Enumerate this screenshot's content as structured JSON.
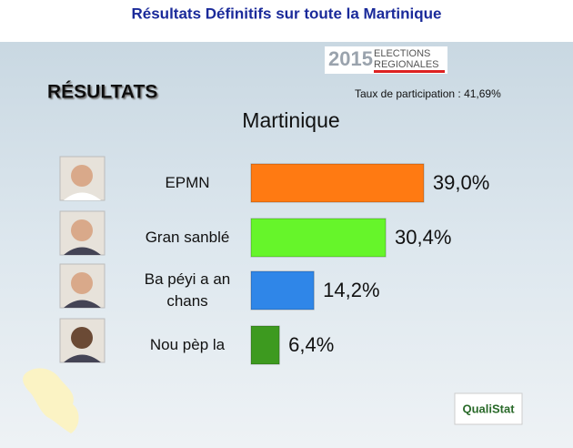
{
  "header": {
    "title": "Résultats Définitifs sur toute la Martinique"
  },
  "logos": {
    "year": "2015",
    "election_line1": "ELECTIONS",
    "election_line2": "REGIONALES",
    "pollster": "QualiStat"
  },
  "section_label": "RÉSULTATS",
  "participation": "Taux de participation : 41,69%",
  "chart_data": {
    "type": "bar",
    "orientation": "horizontal",
    "title": "Martinique",
    "categories": [
      "EPMN",
      "Gran sanblé",
      "Ba péyi a an chans",
      "Nou pèp la"
    ],
    "values": [
      39.0,
      30.4,
      14.2,
      6.4
    ],
    "value_labels": [
      "39,0%",
      "30,4%",
      "14,2%",
      "6,4%"
    ],
    "colors": [
      "#ff7a12",
      "#66f52a",
      "#2f86e8",
      "#3d9a1f"
    ]
  }
}
